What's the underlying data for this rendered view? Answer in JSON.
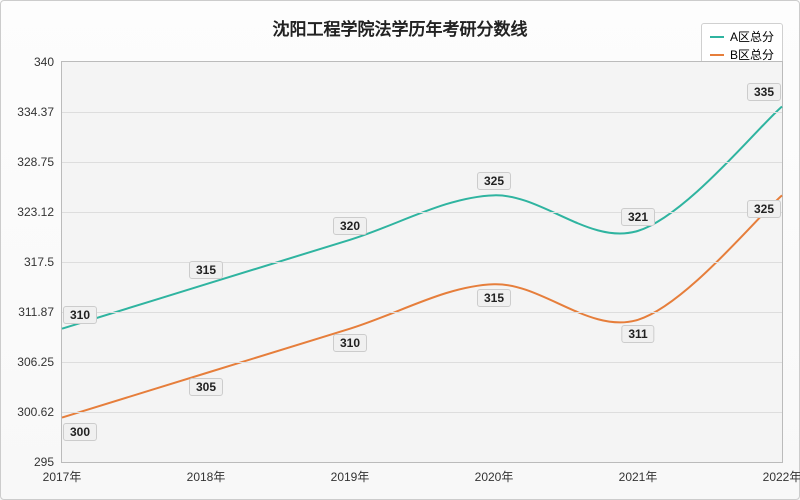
{
  "chart": {
    "type": "line",
    "title": "沈阳工程学院法学历年考研分数线",
    "title_fontsize": 17,
    "title_color": "#222222",
    "background_color": "#f4f4f4",
    "outer_background": "#fdfdfd",
    "border_color": "#bbbbbb",
    "grid_color": "#dddddd",
    "categories": [
      "2017年",
      "2018年",
      "2019年",
      "2020年",
      "2021年",
      "2022年"
    ],
    "ylim": [
      295,
      340
    ],
    "yticks": [
      295,
      300.62,
      306.25,
      311.87,
      317.5,
      323.12,
      328.75,
      334.37,
      340
    ],
    "ytick_labels": [
      "295",
      "300.62",
      "306.25",
      "311.87",
      "317.5",
      "323.12",
      "328.75",
      "334.37",
      "340"
    ],
    "label_fontsize": 12,
    "label_color": "#333333",
    "data_label_bg": "#f0f0f0",
    "data_label_border": "#cccccc",
    "line_width": 2,
    "series": [
      {
        "name": "A区总分",
        "color": "#2fb4a0",
        "values": [
          310,
          315,
          320,
          325,
          321,
          335
        ]
      },
      {
        "name": "B区总分",
        "color": "#e67e3b",
        "values": [
          300,
          305,
          310,
          315,
          311,
          325
        ]
      }
    ],
    "legend": {
      "position": "top-right",
      "bg": "#ffffff",
      "border": "#d0d0d0"
    }
  }
}
